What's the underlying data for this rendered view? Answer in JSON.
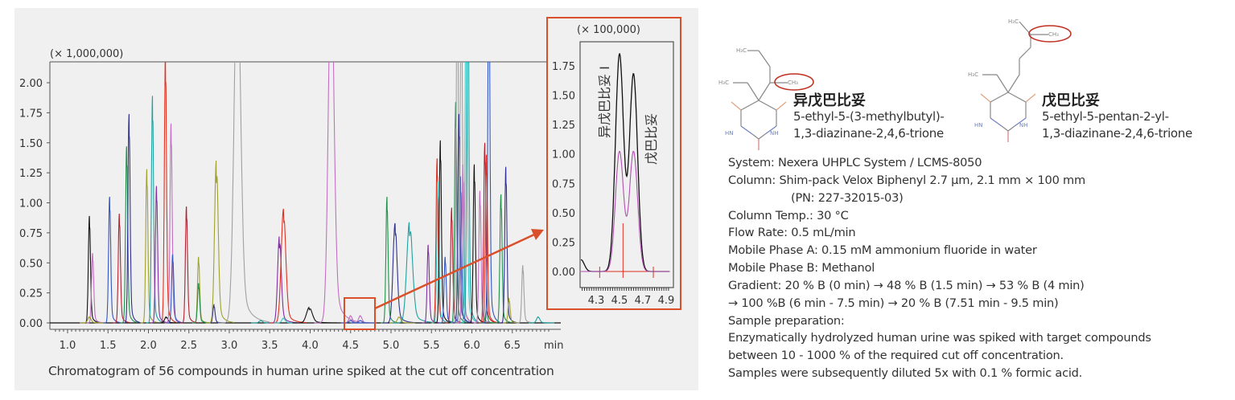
{
  "chart_data": [
    {
      "type": "line",
      "title": "",
      "caption": "Chromatogram of 56 compounds in human urine spiked at the cut off concentration",
      "y_multiplier_label": "(× 1,000,000)",
      "xlabel": "min",
      "xlim": [
        0.8,
        7.1
      ],
      "ylim": [
        -0.05,
        2.2
      ],
      "x_ticks": [
        "1.0",
        "1.5",
        "2.0",
        "2.5",
        "3.0",
        "3.5",
        "4.0",
        "4.5",
        "5.0",
        "5.5",
        "6.0",
        "6.5"
      ],
      "y_ticks": [
        "0.00",
        "0.25",
        "0.50",
        "0.75",
        "1.00",
        "1.25",
        "1.50",
        "1.75",
        "2.00"
      ],
      "grid": false,
      "peaks": [
        {
          "rt": 1.27,
          "height": 0.89,
          "color": "#111111"
        },
        {
          "rt": 1.31,
          "height": 0.58,
          "color": "#c070c0"
        },
        {
          "rt": 1.27,
          "height": 0.05,
          "color": "#a0a030"
        },
        {
          "rt": 1.52,
          "height": 1.05,
          "color": "#3355c0"
        },
        {
          "rt": 1.64,
          "height": 0.91,
          "color": "#b02030"
        },
        {
          "rt": 1.73,
          "height": 1.47,
          "color": "#20904a"
        },
        {
          "rt": 1.76,
          "height": 1.74,
          "color": "#303090"
        },
        {
          "rt": 1.98,
          "height": 1.28,
          "color": "#a0a030"
        },
        {
          "rt": 2.05,
          "height": 1.89,
          "color": "#20a0a0"
        },
        {
          "rt": 2.1,
          "height": 1.14,
          "color": "#8030a0"
        },
        {
          "rt": 2.21,
          "height": 2.25,
          "color": "#e03020"
        },
        {
          "rt": 2.22,
          "height": 0.05,
          "color": "#111111"
        },
        {
          "rt": 2.28,
          "height": 1.66,
          "color": "#c070c0"
        },
        {
          "rt": 2.3,
          "height": 0.57,
          "color": "#3355c0"
        },
        {
          "rt": 2.47,
          "height": 0.97,
          "color": "#b02030"
        },
        {
          "rt": 2.62,
          "height": 0.55,
          "color": "#a0a030"
        },
        {
          "rt": 2.62,
          "height": 0.33,
          "color": "#20904a"
        },
        {
          "rt": 2.81,
          "height": 0.15,
          "color": "#303090"
        },
        {
          "rt": 2.84,
          "height": 1.37,
          "color": "#a0a030"
        },
        {
          "rt": 3.1,
          "height": 3.0,
          "color": "#a0a0a0"
        },
        {
          "rt": 3.39,
          "height": 0.02,
          "color": "#20a0a0"
        },
        {
          "rt": 3.62,
          "height": 0.73,
          "color": "#8030a0"
        },
        {
          "rt": 3.67,
          "height": 0.95,
          "color": "#e03020"
        },
        {
          "rt": 3.67,
          "height": 0.04,
          "color": "#40c8c8"
        },
        {
          "rt": 3.99,
          "height": 0.13,
          "color": "#111111"
        },
        {
          "rt": 4.26,
          "height": 3.0,
          "color": "#c070c0"
        },
        {
          "rt": 4.5,
          "height": 0.06,
          "color": "#c070c0"
        },
        {
          "rt": 4.62,
          "height": 0.06,
          "color": "#c070c0"
        },
        {
          "rt": 4.5,
          "height": 0.02,
          "color": "#3355c0"
        },
        {
          "rt": 4.62,
          "height": 0.02,
          "color": "#3355c0"
        },
        {
          "rt": 4.95,
          "height": 1.05,
          "color": "#20904a"
        },
        {
          "rt": 5.05,
          "height": 0.83,
          "color": "#303090"
        },
        {
          "rt": 5.1,
          "height": 0.05,
          "color": "#a0a030"
        },
        {
          "rt": 5.23,
          "height": 0.85,
          "color": "#20a0a0"
        },
        {
          "rt": 5.46,
          "height": 0.65,
          "color": "#8030a0"
        },
        {
          "rt": 5.57,
          "height": 1.37,
          "color": "#e03020"
        },
        {
          "rt": 5.58,
          "height": 1.18,
          "color": "#40c8c8"
        },
        {
          "rt": 5.61,
          "height": 1.52,
          "color": "#111111"
        },
        {
          "rt": 5.67,
          "height": 0.55,
          "color": "#3355c0"
        },
        {
          "rt": 5.75,
          "height": 0.96,
          "color": "#b02030"
        },
        {
          "rt": 5.8,
          "height": 1.84,
          "color": "#20904a"
        },
        {
          "rt": 5.82,
          "height": 3.0,
          "color": "#a0a0a0"
        },
        {
          "rt": 5.84,
          "height": 1.74,
          "color": "#303090"
        },
        {
          "rt": 5.86,
          "height": 1.22,
          "color": "#3355c0"
        },
        {
          "rt": 5.87,
          "height": 3.0,
          "color": "#a0a0a0"
        },
        {
          "rt": 5.89,
          "height": 1.32,
          "color": "#c070c0"
        },
        {
          "rt": 5.93,
          "height": 3.0,
          "color": "#40c8c8"
        },
        {
          "rt": 5.95,
          "height": 3.0,
          "color": "#20a0a0"
        },
        {
          "rt": 6.03,
          "height": 1.32,
          "color": "#111111"
        },
        {
          "rt": 6.1,
          "height": 1.1,
          "color": "#c070c0"
        },
        {
          "rt": 6.16,
          "height": 1.5,
          "color": "#b02030"
        },
        {
          "rt": 6.18,
          "height": 1.4,
          "color": "#e03020"
        },
        {
          "rt": 6.18,
          "height": 0.1,
          "color": "#20904a"
        },
        {
          "rt": 6.21,
          "height": 3.0,
          "color": "#3355c0"
        },
        {
          "rt": 6.36,
          "height": 1.07,
          "color": "#20904a"
        },
        {
          "rt": 6.42,
          "height": 1.3,
          "color": "#303090"
        },
        {
          "rt": 6.46,
          "height": 0.2,
          "color": "#a0a030"
        },
        {
          "rt": 6.63,
          "height": 0.48,
          "color": "#a0a0a0"
        },
        {
          "rt": 6.82,
          "height": 0.05,
          "color": "#20a0a0"
        }
      ]
    },
    {
      "type": "line",
      "title": "",
      "y_multiplier_label": "(× 100,000)",
      "xlim": [
        4.17,
        4.93
      ],
      "ylim": [
        -0.15,
        1.95
      ],
      "x_ticks": [
        "4.3",
        "4.5",
        "4.7",
        "4.9"
      ],
      "y_ticks": [
        "0.00",
        "0.25",
        "0.50",
        "0.75",
        "1.00",
        "1.25",
        "1.50",
        "1.75"
      ],
      "peak_labels": [
        "异戊巴比妥 I",
        "戊巴比妥"
      ],
      "series": [
        {
          "color": "#111111",
          "peaks": [
            {
              "rt": 4.5,
              "height": 1.85
            },
            {
              "rt": 4.62,
              "height": 1.68
            }
          ]
        },
        {
          "color": "#b050b0",
          "peaks": [
            {
              "rt": 4.5,
              "height": 1.02
            },
            {
              "rt": 4.62,
              "height": 1.02
            }
          ]
        }
      ],
      "integration_marks": [
        4.33,
        4.53,
        4.79
      ],
      "integration_color": "#e03020"
    }
  ],
  "highlight_color": "#d9502a",
  "compounds": [
    {
      "name": "异戊巴比妥",
      "iupac_line1": "5-ethyl-5-(3-methylbutyl)-",
      "iupac_line2": "1,3-diazinane-2,4,6-trione"
    },
    {
      "name": "戊巴比妥",
      "iupac_line1": "5-ethyl-5-pentan-2-yl-",
      "iupac_line2": "1,3-diazinane-2,4,6-trione"
    }
  ],
  "conditions": [
    "System: Nexera UHPLC System / LCMS-8050",
    "Column: Shim-pack Velox Biphenyl 2.7 µm, 2.1 mm × 100 mm",
    "(PN: 227-32015-03)",
    "Column Temp.: 30 °C",
    "Flow Rate: 0.5 mL/min",
    "Mobile Phase A: 0.15 mM ammonium fluoride in water",
    "Mobile Phase B: Methanol",
    "Gradient: 20 % B (0 min) → 48 % B (1.5 min) → 53 % B (4 min)",
    "→ 100 %B (6 min - 7.5 min) → 20 % B (7.51 min - 9.5 min)",
    "Sample preparation:",
    "Enzymatically hydrolyzed human urine was spiked with target compounds",
    "between 10 - 1000 % of the required cut off concentration.",
    "Samples were subsequently diluted 5x with 0.1 % formic acid."
  ]
}
